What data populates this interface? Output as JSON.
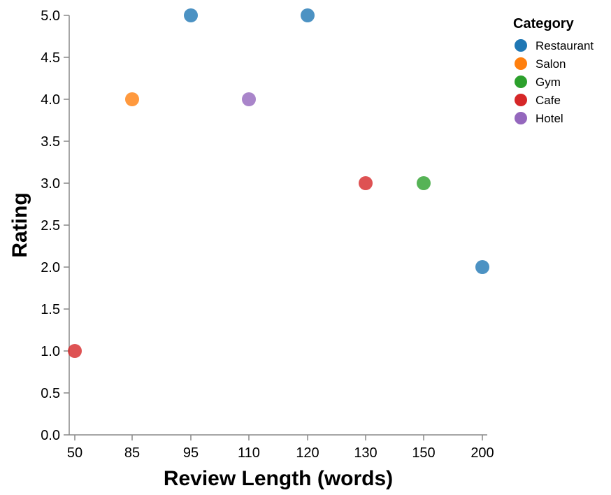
{
  "chart_data": {
    "type": "scatter",
    "xlabel": "Review Length (words)",
    "ylabel": "Rating",
    "x_scale": "ordinal",
    "x_categories": [
      "50",
      "85",
      "95",
      "110",
      "120",
      "130",
      "150",
      "200"
    ],
    "ylim": [
      0,
      5
    ],
    "y_ticks": [
      "0.0",
      "0.5",
      "1.0",
      "1.5",
      "2.0",
      "2.5",
      "3.0",
      "3.5",
      "4.0",
      "4.5",
      "5.0"
    ],
    "grid": false,
    "legend": {
      "title": "Category",
      "placement": "top-right",
      "entries": [
        {
          "name": "Restaurant",
          "color": "#1f77b4"
        },
        {
          "name": "Salon",
          "color": "#ff7f0e"
        },
        {
          "name": "Gym",
          "color": "#2ca02c"
        },
        {
          "name": "Cafe",
          "color": "#d62728"
        },
        {
          "name": "Hotel",
          "color": "#9467bd"
        }
      ]
    },
    "points": [
      {
        "x": "50",
        "y": 1.0,
        "category": "Cafe"
      },
      {
        "x": "85",
        "y": 4.0,
        "category": "Salon"
      },
      {
        "x": "95",
        "y": 5.0,
        "category": "Restaurant"
      },
      {
        "x": "110",
        "y": 4.0,
        "category": "Hotel"
      },
      {
        "x": "120",
        "y": 5.0,
        "category": "Restaurant"
      },
      {
        "x": "130",
        "y": 3.0,
        "category": "Cafe"
      },
      {
        "x": "150",
        "y": 3.0,
        "category": "Gym"
      },
      {
        "x": "200",
        "y": 2.0,
        "category": "Restaurant"
      }
    ]
  }
}
